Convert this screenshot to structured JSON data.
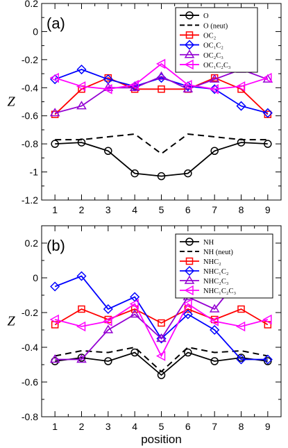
{
  "chart_data": [
    {
      "type": "line",
      "panel_label": "(a)",
      "xlabel": "",
      "ylabel": "Z",
      "x": [
        1,
        2,
        3,
        4,
        5,
        6,
        7,
        8,
        9
      ],
      "xlim": [
        0.5,
        9.5
      ],
      "ylim": [
        -1.2,
        0.2
      ],
      "yticks": [
        -1.2,
        -1,
        -0.8,
        -0.6,
        -0.4,
        -0.2,
        0,
        0.2
      ],
      "ytick_labels": [
        "-1.2",
        "-1",
        "-0.8",
        "-0.6",
        "-0.4",
        "-0.2",
        "0",
        "0.2"
      ],
      "xtick_labels": [
        "1",
        "2",
        "3",
        "4",
        "5",
        "6",
        "7",
        "8",
        "9"
      ],
      "grid": false,
      "legend_position": "top-right",
      "series": [
        {
          "name": "O",
          "color": "#000000",
          "marker": "circle",
          "dash": false,
          "values": [
            -0.8,
            -0.79,
            -0.85,
            -1.01,
            -1.03,
            -1.01,
            -0.85,
            -0.79,
            -0.8
          ]
        },
        {
          "name": "O (neut)",
          "color": "#000000",
          "marker": "none",
          "dash": true,
          "values": [
            -0.77,
            -0.77,
            -0.75,
            -0.73,
            -0.87,
            -0.73,
            -0.75,
            -0.77,
            -0.77
          ]
        },
        {
          "name": "OC₂",
          "color": "#ff0000",
          "marker": "square",
          "dash": false,
          "values": [
            -0.59,
            -0.41,
            -0.33,
            -0.41,
            -0.41,
            -0.41,
            -0.33,
            -0.41,
            -0.59
          ]
        },
        {
          "name": "OC₁C₂",
          "color": "#0000ff",
          "marker": "diamond",
          "dash": false,
          "values": [
            -0.34,
            -0.27,
            -0.34,
            -0.39,
            -0.33,
            -0.39,
            -0.41,
            -0.53,
            -0.58
          ]
        },
        {
          "name": "OC₂C₃",
          "color": "#9400d3",
          "marker": "triangle-up",
          "dash": false,
          "values": [
            -0.58,
            -0.53,
            -0.4,
            -0.4,
            -0.32,
            -0.41,
            -0.34,
            -0.27,
            -0.34
          ]
        },
        {
          "name": "OC₁C₂C₃",
          "color": "#ff00ff",
          "marker": "triangle-left",
          "dash": false,
          "values": [
            -0.33,
            -0.39,
            -0.41,
            -0.38,
            -0.23,
            -0.38,
            -0.41,
            -0.39,
            -0.33
          ]
        }
      ]
    },
    {
      "type": "line",
      "panel_label": "(b)",
      "xlabel": "position",
      "ylabel": "Z",
      "x": [
        1,
        2,
        3,
        4,
        5,
        6,
        7,
        8,
        9
      ],
      "xlim": [
        0.5,
        9.5
      ],
      "ylim": [
        -0.8,
        0.3
      ],
      "yticks": [
        -0.8,
        -0.6,
        -0.4,
        -0.2,
        0,
        0.2
      ],
      "ytick_labels": [
        "-0.8",
        "-0.6",
        "-0.4",
        "-0.2",
        "0",
        "0.2"
      ],
      "xtick_labels": [
        "1",
        "2",
        "3",
        "4",
        "5",
        "6",
        "7",
        "8",
        "9"
      ],
      "grid": false,
      "legend_position": "top-right",
      "series": [
        {
          "name": "NH",
          "color": "#000000",
          "marker": "circle",
          "dash": false,
          "values": [
            -0.48,
            -0.46,
            -0.48,
            -0.43,
            -0.56,
            -0.43,
            -0.48,
            -0.46,
            -0.48
          ]
        },
        {
          "name": "NH (neut)",
          "color": "#000000",
          "marker": "none",
          "dash": true,
          "values": [
            -0.45,
            -0.42,
            -0.43,
            -0.4,
            -0.54,
            -0.4,
            -0.43,
            -0.42,
            -0.45
          ]
        },
        {
          "name": "NHC₂",
          "color": "#ff0000",
          "marker": "square",
          "dash": false,
          "values": [
            -0.27,
            -0.18,
            -0.24,
            -0.18,
            -0.26,
            -0.18,
            -0.24,
            -0.18,
            -0.27
          ]
        },
        {
          "name": "NHC₁C₂",
          "color": "#0000ff",
          "marker": "diamond",
          "dash": false,
          "values": [
            -0.05,
            0.01,
            -0.18,
            -0.11,
            -0.35,
            -0.21,
            -0.3,
            -0.47,
            -0.47
          ]
        },
        {
          "name": "NHC₂C₃",
          "color": "#9400d3",
          "marker": "triangle-up",
          "dash": false,
          "values": [
            -0.47,
            -0.47,
            -0.3,
            -0.21,
            -0.35,
            -0.11,
            -0.18,
            0.01,
            -0.05
          ]
        },
        {
          "name": "NHC₁C₂C₃",
          "color": "#ff00ff",
          "marker": "triangle-left",
          "dash": false,
          "values": [
            -0.24,
            -0.28,
            -0.25,
            -0.15,
            -0.45,
            -0.15,
            -0.25,
            -0.28,
            -0.24
          ]
        }
      ]
    }
  ]
}
